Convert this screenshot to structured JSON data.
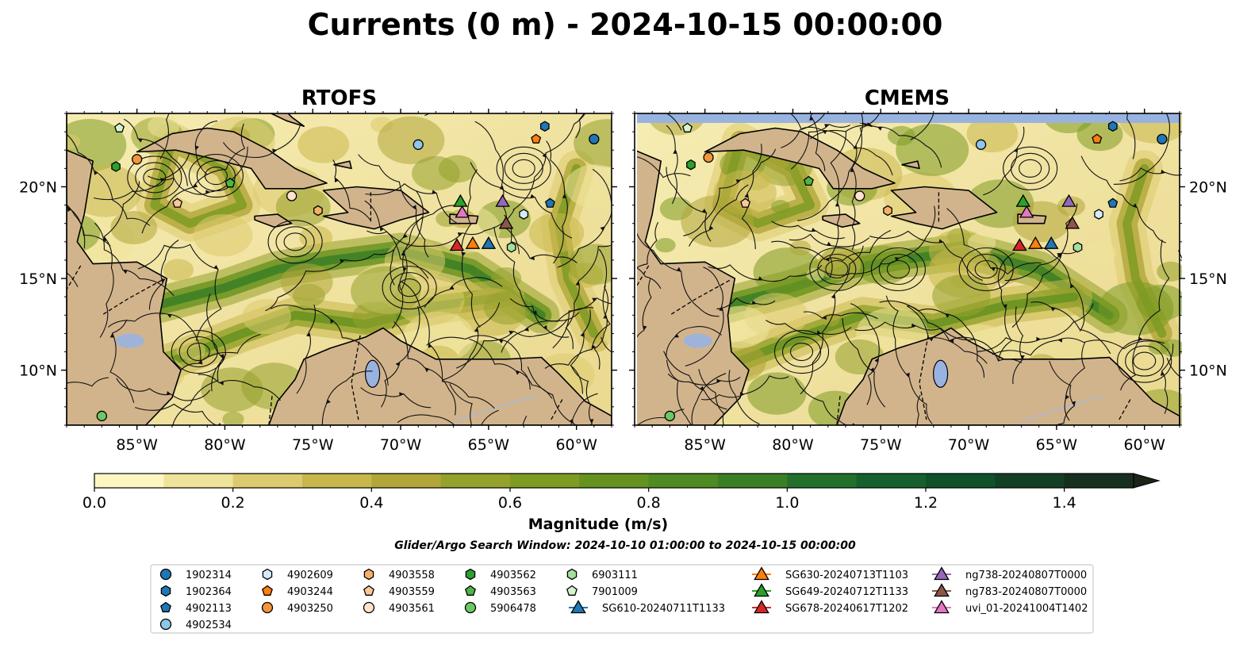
{
  "figure": {
    "title": "Currents (0 m) - 2024-10-15 00:00:00",
    "colorbar_label": "Magnitude (m/s)",
    "subtitle": "Glider/Argo Search Window: 2024-10-10 01:00:00 to 2024-10-15 00:00:00"
  },
  "colors": {
    "land": "#d2b48c",
    "water": "#99b3e0",
    "river": "#a9b9d6",
    "cmap": [
      "#fdf6c3",
      "#efe39a",
      "#dccb6e",
      "#c8b84c",
      "#b0a63a",
      "#94a12c",
      "#7e9b23",
      "#66921f",
      "#4f8a22",
      "#3a7f26",
      "#236f2c",
      "#15602e",
      "#11512a",
      "#134025",
      "#172f1f",
      "#1a2418"
    ]
  },
  "legend": {
    "items": [
      {
        "label": "1902314",
        "shape": "circle",
        "color": "#1f77b4"
      },
      {
        "label": "1902364",
        "shape": "hexagon",
        "color": "#1f77b4"
      },
      {
        "label": "4902113",
        "shape": "pentagon",
        "color": "#1f77b4"
      },
      {
        "label": "4902534",
        "shape": "circle",
        "color": "#8ec6ea"
      },
      {
        "label": "4902609",
        "shape": "hexagon",
        "color": "#d5ebfa"
      },
      {
        "label": "4903244",
        "shape": "pentagon",
        "color": "#ff7f0e"
      },
      {
        "label": "4903250",
        "shape": "circle",
        "color": "#f2963b"
      },
      {
        "label": "4903558",
        "shape": "hexagon",
        "color": "#f5b06a"
      },
      {
        "label": "4903559",
        "shape": "pentagon",
        "color": "#f9c79b"
      },
      {
        "label": "4903561",
        "shape": "circle",
        "color": "#fde3cb"
      },
      {
        "label": "4903562",
        "shape": "hexagon",
        "color": "#2ca02c"
      },
      {
        "label": "4903563",
        "shape": "pentagon",
        "color": "#4fb446"
      },
      {
        "label": "5906478",
        "shape": "circle",
        "color": "#6cc865"
      },
      {
        "label": "6903111",
        "shape": "hexagon",
        "color": "#a3e09b"
      },
      {
        "label": "7901009",
        "shape": "pentagon",
        "color": "#d4f4cd"
      },
      {
        "label": "SG610-20240711T1133",
        "shape": "triangle-line",
        "color": "#1f77b4"
      },
      {
        "label": "SG630-20240713T1103",
        "shape": "triangle-line",
        "color": "#ff7f0e"
      },
      {
        "label": "SG649-20240712T1133",
        "shape": "triangle-line",
        "color": "#2ca02c"
      },
      {
        "label": "SG678-20240617T1202",
        "shape": "triangle-line",
        "color": "#d62728"
      },
      {
        "label": "ng738-20240807T0000",
        "shape": "triangle-line",
        "color": "#9467bd"
      },
      {
        "label": "ng783-20240807T0000",
        "shape": "triangle-line",
        "color": "#8c564b"
      },
      {
        "label": "uvi_01-20241004T1402",
        "shape": "triangle-line",
        "color": "#e377c2"
      }
    ]
  },
  "chart_data": [
    {
      "type": "heatmap",
      "title": "RTOFS",
      "description_field": "surface current magnitude with streamlines",
      "lon_range": [
        -89,
        -58
      ],
      "lat_range": [
        7,
        24
      ],
      "lon_ticks": [
        "85°W",
        "80°W",
        "75°W",
        "70°W",
        "65°W",
        "60°W"
      ],
      "lat_ticks": [
        "10°N",
        "15°N",
        "20°N"
      ],
      "colorbar": {
        "min": 0.0,
        "max": 1.5,
        "ticks": [
          "0.0",
          "0.2",
          "0.4",
          "0.6",
          "0.8",
          "1.0",
          "1.2",
          "1.4"
        ],
        "extend": "max"
      },
      "markers": [
        {
          "id": "1902314",
          "lon": -59,
          "lat": 22.6
        },
        {
          "id": "1902364",
          "lon": -61.8,
          "lat": 23.3
        },
        {
          "id": "4902113",
          "lon": -61.5,
          "lat": 19.1
        },
        {
          "id": "4902534",
          "lon": -69,
          "lat": 22.3
        },
        {
          "id": "4902609",
          "lon": -63,
          "lat": 18.5
        },
        {
          "id": "4903244",
          "lon": -62.3,
          "lat": 22.6
        },
        {
          "id": "4903250",
          "lon": -85,
          "lat": 21.5
        },
        {
          "id": "4903558",
          "lon": -74.7,
          "lat": 18.7
        },
        {
          "id": "4903559",
          "lon": -82.7,
          "lat": 19.1
        },
        {
          "id": "4903561",
          "lon": -76.2,
          "lat": 19.5
        },
        {
          "id": "4903562",
          "lon": -86.2,
          "lat": 21.1
        },
        {
          "id": "4903563",
          "lon": -79.7,
          "lat": 20.2
        },
        {
          "id": "5906478",
          "lon": -87,
          "lat": 7.5
        },
        {
          "id": "6903111",
          "lon": -63.7,
          "lat": 16.7
        },
        {
          "id": "7901009",
          "lon": -86,
          "lat": 23.2
        },
        {
          "id": "SG610-20240711T1133",
          "lon": -65,
          "lat": 16.9
        },
        {
          "id": "SG630-20240713T1103",
          "lon": -65.9,
          "lat": 16.9
        },
        {
          "id": "SG649-20240712T1133",
          "lon": -66.6,
          "lat": 19.2
        },
        {
          "id": "SG678-20240617T1202",
          "lon": -66.8,
          "lat": 16.8
        },
        {
          "id": "ng738-20240807T0000",
          "lon": -64.2,
          "lat": 19.2
        },
        {
          "id": "ng783-20240807T0000",
          "lon": -64,
          "lat": 18
        },
        {
          "id": "uvi_01-20241004T1402",
          "lon": -66.5,
          "lat": 18.6
        }
      ]
    },
    {
      "type": "heatmap",
      "title": "CMEMS",
      "description_field": "surface current magnitude with streamlines",
      "lon_range": [
        -89,
        -58
      ],
      "lat_range": [
        7,
        24
      ],
      "lon_ticks": [
        "85°W",
        "80°W",
        "75°W",
        "70°W",
        "65°W",
        "60°W"
      ],
      "lat_ticks": [
        "10°N",
        "15°N",
        "20°N"
      ],
      "colorbar": {
        "min": 0.0,
        "max": 1.5,
        "ticks": [
          "0.0",
          "0.2",
          "0.4",
          "0.6",
          "0.8",
          "1.0",
          "1.2",
          "1.4"
        ],
        "extend": "max"
      },
      "markers": [
        {
          "id": "1902314",
          "lon": -59,
          "lat": 22.6
        },
        {
          "id": "1902364",
          "lon": -61.8,
          "lat": 23.3
        },
        {
          "id": "4902113",
          "lon": -61.8,
          "lat": 19.1
        },
        {
          "id": "4902534",
          "lon": -69.3,
          "lat": 22.3
        },
        {
          "id": "4902609",
          "lon": -62.6,
          "lat": 18.5
        },
        {
          "id": "4903244",
          "lon": -62.7,
          "lat": 22.6
        },
        {
          "id": "4903250",
          "lon": -84.8,
          "lat": 21.6
        },
        {
          "id": "4903558",
          "lon": -74.6,
          "lat": 18.7
        },
        {
          "id": "4903559",
          "lon": -82.7,
          "lat": 19.1
        },
        {
          "id": "4903561",
          "lon": -76.2,
          "lat": 19.5
        },
        {
          "id": "4903562",
          "lon": -85.8,
          "lat": 21.2
        },
        {
          "id": "4903563",
          "lon": -79.1,
          "lat": 20.3
        },
        {
          "id": "5906478",
          "lon": -87,
          "lat": 7.5
        },
        {
          "id": "6903111",
          "lon": -63.8,
          "lat": 16.7
        },
        {
          "id": "7901009",
          "lon": -86,
          "lat": 23.2
        },
        {
          "id": "SG610-20240711T1133",
          "lon": -65.3,
          "lat": 16.9
        },
        {
          "id": "SG630-20240713T1103",
          "lon": -66.2,
          "lat": 16.9
        },
        {
          "id": "SG649-20240712T1133",
          "lon": -66.9,
          "lat": 19.2
        },
        {
          "id": "SG678-20240617T1202",
          "lon": -67.1,
          "lat": 16.8
        },
        {
          "id": "ng738-20240807T0000",
          "lon": -64.3,
          "lat": 19.2
        },
        {
          "id": "ng783-20240807T0000",
          "lon": -64.1,
          "lat": 18
        },
        {
          "id": "uvi_01-20241004T1402",
          "lon": -66.7,
          "lat": 18.6
        }
      ]
    }
  ]
}
